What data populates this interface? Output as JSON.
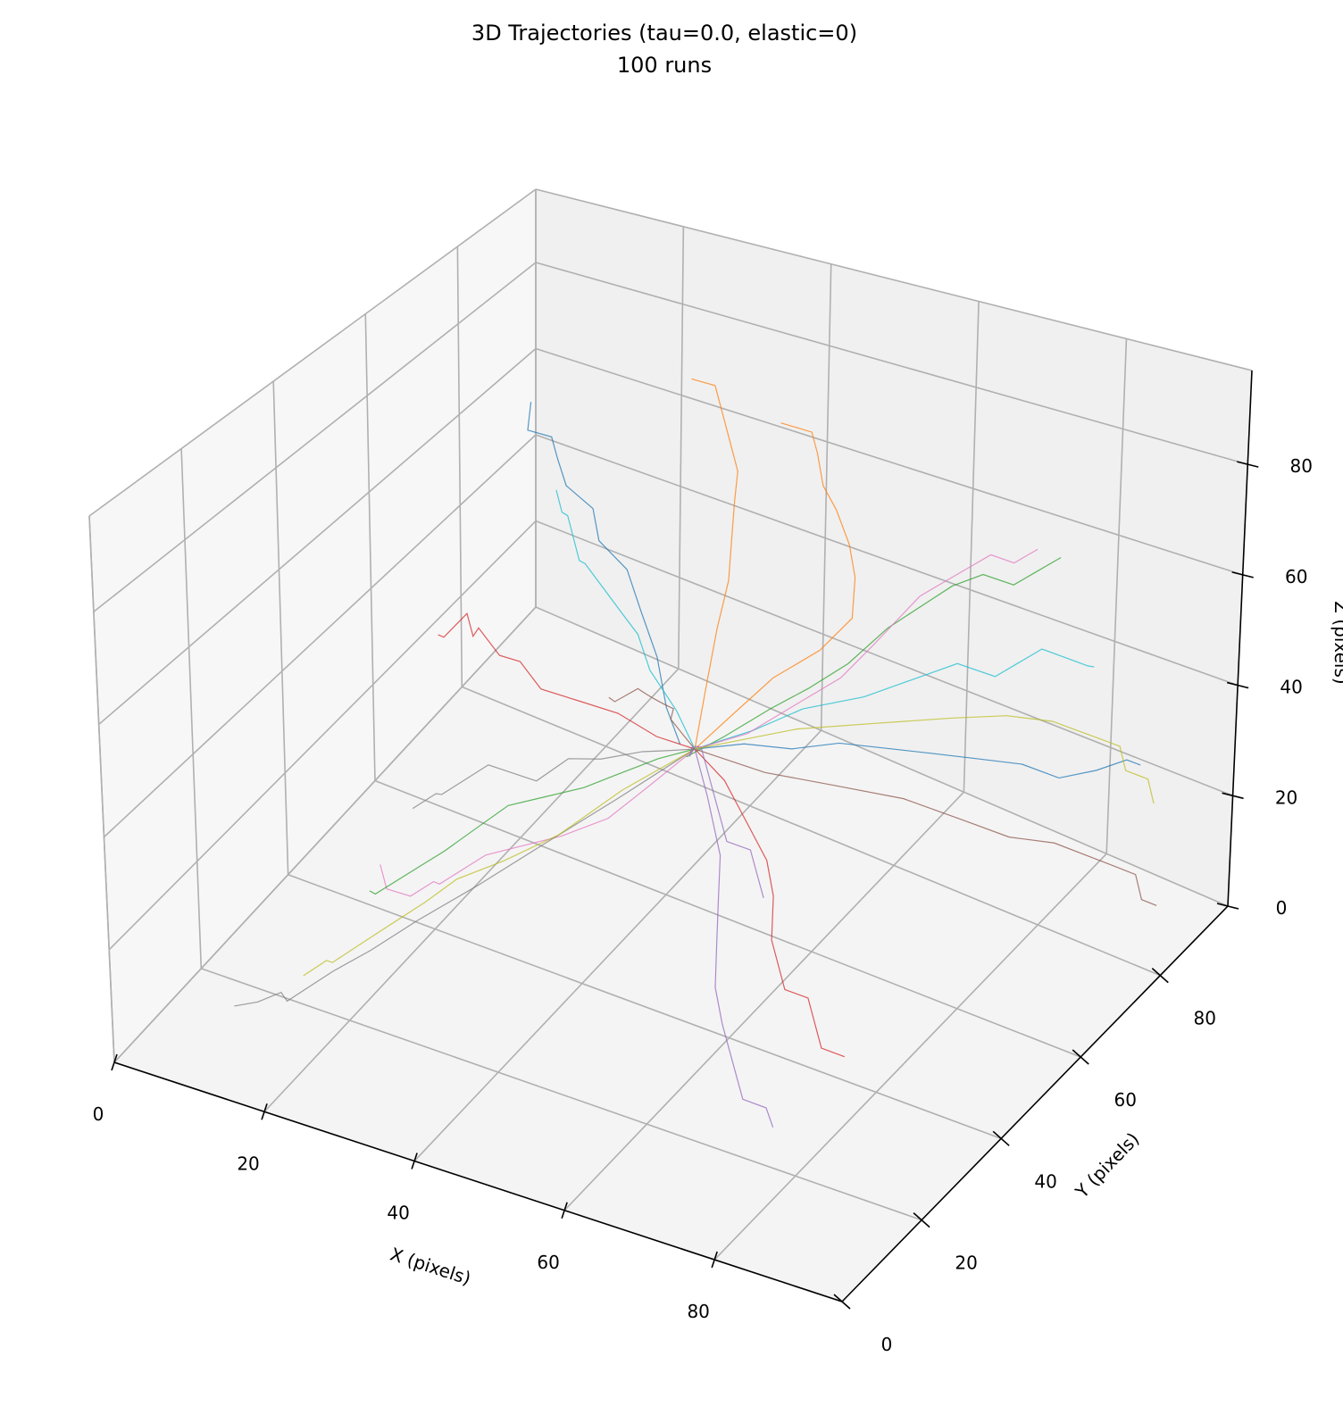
{
  "chart_data": {
    "type": "line3d",
    "title": "3D Trajectories (tau=0.0, elastic=0)",
    "subtitle": "100 runs",
    "xlabel": "X (pixels)",
    "ylabel": "Y (pixels)",
    "zlabel": "Z (pixels)",
    "xlim": [
      0,
      97
    ],
    "ylim": [
      0,
      97
    ],
    "zlim": [
      0,
      97
    ],
    "xticks": [
      "0",
      "20",
      "40",
      "60",
      "80"
    ],
    "yticks": [
      "0",
      "20",
      "40",
      "60",
      "80"
    ],
    "zticks": [
      "0",
      "20",
      "40",
      "60",
      "80"
    ],
    "grid": true,
    "colors": [
      "#1f77b4",
      "#ff7f0e",
      "#2ca02c",
      "#d62728",
      "#9467bd",
      "#8c564b",
      "#e377c2",
      "#7f7f7f",
      "#bcbd22",
      "#17becf"
    ],
    "pane_colors": {
      "left": "#f7f7f7",
      "back": "#f0f0f0",
      "floor": "#f4f4f4"
    },
    "series": [
      {
        "points": [
          [
            48,
            50,
            40
          ],
          [
            45,
            52,
            44
          ],
          [
            42,
            55,
            50
          ],
          [
            38,
            58,
            55
          ],
          [
            35,
            60,
            60
          ],
          [
            30,
            62,
            62
          ],
          [
            28,
            64,
            66
          ],
          [
            25,
            63,
            70
          ],
          [
            22,
            66,
            72
          ],
          [
            20,
            68,
            74
          ],
          [
            18,
            66,
            76
          ],
          [
            16,
            70,
            78
          ]
        ]
      },
      {
        "points": [
          [
            50,
            50,
            40
          ],
          [
            53,
            54,
            45
          ],
          [
            56,
            58,
            50
          ],
          [
            60,
            62,
            54
          ],
          [
            62,
            66,
            58
          ],
          [
            60,
            70,
            62
          ],
          [
            58,
            72,
            66
          ],
          [
            55,
            74,
            70
          ],
          [
            52,
            76,
            72
          ],
          [
            50,
            78,
            76
          ],
          [
            48,
            80,
            78
          ],
          [
            45,
            78,
            80
          ]
        ]
      },
      {
        "points": [
          [
            50,
            48,
            40
          ],
          [
            54,
            50,
            44
          ],
          [
            58,
            54,
            48
          ],
          [
            62,
            56,
            52
          ],
          [
            65,
            60,
            55
          ],
          [
            68,
            64,
            60
          ],
          [
            70,
            68,
            62
          ],
          [
            72,
            72,
            64
          ],
          [
            75,
            74,
            66
          ],
          [
            78,
            76,
            64
          ],
          [
            80,
            78,
            66
          ],
          [
            82,
            80,
            68
          ]
        ]
      },
      {
        "points": [
          [
            50,
            50,
            40
          ],
          [
            46,
            48,
            42
          ],
          [
            42,
            46,
            46
          ],
          [
            38,
            44,
            48
          ],
          [
            34,
            42,
            50
          ],
          [
            30,
            44,
            52
          ],
          [
            26,
            46,
            50
          ],
          [
            22,
            48,
            52
          ],
          [
            20,
            50,
            48
          ],
          [
            18,
            52,
            50
          ],
          [
            16,
            50,
            46
          ],
          [
            14,
            52,
            44
          ]
        ]
      },
      {
        "points": [
          [
            50,
            50,
            40
          ],
          [
            54,
            46,
            36
          ],
          [
            58,
            42,
            30
          ],
          [
            60,
            38,
            26
          ],
          [
            62,
            34,
            22
          ],
          [
            64,
            30,
            18
          ],
          [
            66,
            28,
            14
          ],
          [
            68,
            26,
            12
          ],
          [
            70,
            24,
            10
          ],
          [
            72,
            22,
            8
          ],
          [
            74,
            24,
            6
          ],
          [
            76,
            22,
            5
          ]
        ]
      },
      {
        "points": [
          [
            50,
            50,
            40
          ],
          [
            56,
            56,
            34
          ],
          [
            62,
            62,
            30
          ],
          [
            68,
            68,
            26
          ],
          [
            74,
            72,
            22
          ],
          [
            78,
            76,
            18
          ],
          [
            82,
            80,
            16
          ],
          [
            86,
            82,
            14
          ],
          [
            88,
            84,
            12
          ],
          [
            90,
            86,
            10
          ],
          [
            92,
            84,
            8
          ],
          [
            93,
            86,
            6
          ]
        ]
      },
      {
        "points": [
          [
            50,
            50,
            40
          ],
          [
            47,
            44,
            36
          ],
          [
            44,
            40,
            32
          ],
          [
            40,
            36,
            30
          ],
          [
            36,
            34,
            28
          ],
          [
            32,
            32,
            26
          ],
          [
            30,
            30,
            24
          ],
          [
            28,
            28,
            22
          ],
          [
            26,
            30,
            20
          ],
          [
            24,
            28,
            18
          ],
          [
            22,
            26,
            20
          ],
          [
            20,
            28,
            22
          ]
        ]
      },
      {
        "points": [
          [
            50,
            50,
            40
          ],
          [
            44,
            42,
            34
          ],
          [
            38,
            36,
            28
          ],
          [
            32,
            30,
            22
          ],
          [
            26,
            26,
            16
          ],
          [
            22,
            22,
            12
          ],
          [
            18,
            20,
            8
          ],
          [
            16,
            18,
            6
          ],
          [
            14,
            16,
            4
          ],
          [
            12,
            18,
            3
          ],
          [
            10,
            16,
            2
          ],
          [
            8,
            14,
            2
          ]
        ]
      },
      {
        "points": [
          [
            50,
            50,
            40
          ],
          [
            46,
            40,
            38
          ],
          [
            42,
            32,
            34
          ],
          [
            38,
            26,
            32
          ],
          [
            34,
            22,
            30
          ],
          [
            32,
            18,
            28
          ],
          [
            30,
            16,
            26
          ],
          [
            28,
            14,
            24
          ],
          [
            26,
            12,
            22
          ],
          [
            24,
            10,
            20
          ],
          [
            22,
            12,
            18
          ],
          [
            20,
            10,
            16
          ]
        ]
      },
      {
        "points": [
          [
            50,
            50,
            40
          ],
          [
            55,
            55,
            42
          ],
          [
            60,
            58,
            46
          ],
          [
            66,
            62,
            48
          ],
          [
            70,
            66,
            50
          ],
          [
            74,
            70,
            52
          ],
          [
            78,
            72,
            50
          ],
          [
            80,
            74,
            52
          ],
          [
            82,
            76,
            54
          ],
          [
            84,
            78,
            52
          ],
          [
            86,
            80,
            50
          ],
          [
            88,
            78,
            52
          ]
        ]
      },
      {
        "points": [
          [
            50,
            50,
            40
          ],
          [
            52,
            58,
            36
          ],
          [
            55,
            64,
            32
          ],
          [
            58,
            70,
            30
          ],
          [
            62,
            74,
            28
          ],
          [
            66,
            78,
            26
          ],
          [
            70,
            82,
            24
          ],
          [
            74,
            86,
            22
          ],
          [
            78,
            88,
            20
          ],
          [
            82,
            90,
            22
          ],
          [
            85,
            92,
            24
          ],
          [
            88,
            90,
            26
          ]
        ]
      },
      {
        "points": [
          [
            50,
            50,
            40
          ],
          [
            48,
            56,
            46
          ],
          [
            46,
            62,
            52
          ],
          [
            44,
            68,
            56
          ],
          [
            42,
            72,
            60
          ],
          [
            40,
            76,
            64
          ],
          [
            38,
            80,
            66
          ],
          [
            36,
            82,
            68
          ],
          [
            34,
            84,
            70
          ],
          [
            32,
            86,
            72
          ],
          [
            30,
            88,
            74
          ],
          [
            28,
            86,
            76
          ]
        ]
      },
      {
        "points": [
          [
            50,
            50,
            40
          ],
          [
            45,
            50,
            36
          ],
          [
            40,
            48,
            32
          ],
          [
            36,
            48,
            28
          ],
          [
            32,
            46,
            26
          ],
          [
            28,
            44,
            24
          ],
          [
            26,
            40,
            22
          ],
          [
            24,
            36,
            20
          ],
          [
            22,
            34,
            18
          ],
          [
            20,
            32,
            16
          ],
          [
            18,
            30,
            14
          ],
          [
            16,
            32,
            12
          ]
        ]
      },
      {
        "points": [
          [
            50,
            50,
            40
          ],
          [
            54,
            50,
            36
          ],
          [
            58,
            48,
            32
          ],
          [
            62,
            46,
            28
          ],
          [
            64,
            44,
            24
          ],
          [
            66,
            40,
            20
          ],
          [
            68,
            38,
            18
          ],
          [
            70,
            36,
            16
          ],
          [
            72,
            38,
            14
          ],
          [
            74,
            36,
            12
          ],
          [
            76,
            34,
            10
          ],
          [
            78,
            36,
            8
          ]
        ]
      },
      {
        "points": [
          [
            50,
            50,
            40
          ],
          [
            52,
            46,
            44
          ],
          [
            54,
            42,
            46
          ],
          [
            56,
            40,
            50
          ],
          [
            58,
            38,
            52
          ],
          [
            60,
            36,
            50
          ],
          [
            62,
            34,
            48
          ],
          [
            64,
            32,
            46
          ],
          [
            66,
            30,
            44
          ],
          [
            68,
            32,
            42
          ],
          [
            70,
            30,
            40
          ],
          [
            72,
            28,
            38
          ]
        ]
      },
      {
        "points": [
          [
            50,
            50,
            40
          ],
          [
            46,
            54,
            38
          ],
          [
            42,
            58,
            36
          ],
          [
            40,
            62,
            34
          ],
          [
            38,
            64,
            32
          ],
          [
            36,
            66,
            30
          ],
          [
            34,
            68,
            28
          ],
          [
            32,
            70,
            26
          ],
          [
            30,
            72,
            24
          ],
          [
            28,
            74,
            22
          ],
          [
            26,
            72,
            20
          ],
          [
            24,
            74,
            18
          ]
        ]
      },
      {
        "points": [
          [
            50,
            50,
            40
          ],
          [
            56,
            52,
            44
          ],
          [
            60,
            56,
            48
          ],
          [
            64,
            60,
            52
          ],
          [
            66,
            64,
            56
          ],
          [
            68,
            66,
            60
          ],
          [
            70,
            68,
            64
          ],
          [
            72,
            70,
            66
          ],
          [
            74,
            72,
            68
          ],
          [
            76,
            74,
            70
          ],
          [
            78,
            76,
            68
          ],
          [
            80,
            78,
            70
          ]
        ]
      },
      {
        "points": [
          [
            50,
            50,
            40
          ],
          [
            50,
            44,
            44
          ],
          [
            50,
            38,
            48
          ],
          [
            48,
            32,
            50
          ],
          [
            46,
            28,
            52
          ],
          [
            44,
            24,
            50
          ],
          [
            42,
            22,
            52
          ],
          [
            40,
            20,
            54
          ],
          [
            38,
            18,
            52
          ],
          [
            36,
            16,
            50
          ],
          [
            34,
            18,
            48
          ],
          [
            32,
            16,
            46
          ]
        ]
      },
      {
        "points": [
          [
            50,
            50,
            40
          ],
          [
            58,
            60,
            40
          ],
          [
            64,
            68,
            38
          ],
          [
            70,
            76,
            36
          ],
          [
            74,
            82,
            34
          ],
          [
            78,
            86,
            32
          ],
          [
            80,
            88,
            30
          ],
          [
            82,
            90,
            28
          ],
          [
            84,
            92,
            26
          ],
          [
            86,
            90,
            24
          ],
          [
            88,
            92,
            22
          ],
          [
            90,
            90,
            20
          ]
        ]
      },
      {
        "points": [
          [
            50,
            50,
            40
          ],
          [
            44,
            56,
            40
          ],
          [
            38,
            60,
            42
          ],
          [
            34,
            64,
            44
          ],
          [
            30,
            68,
            42
          ],
          [
            26,
            70,
            44
          ],
          [
            22,
            72,
            46
          ],
          [
            20,
            74,
            44
          ],
          [
            18,
            76,
            46
          ],
          [
            16,
            78,
            48
          ],
          [
            14,
            80,
            46
          ],
          [
            12,
            82,
            48
          ]
        ]
      }
    ]
  }
}
